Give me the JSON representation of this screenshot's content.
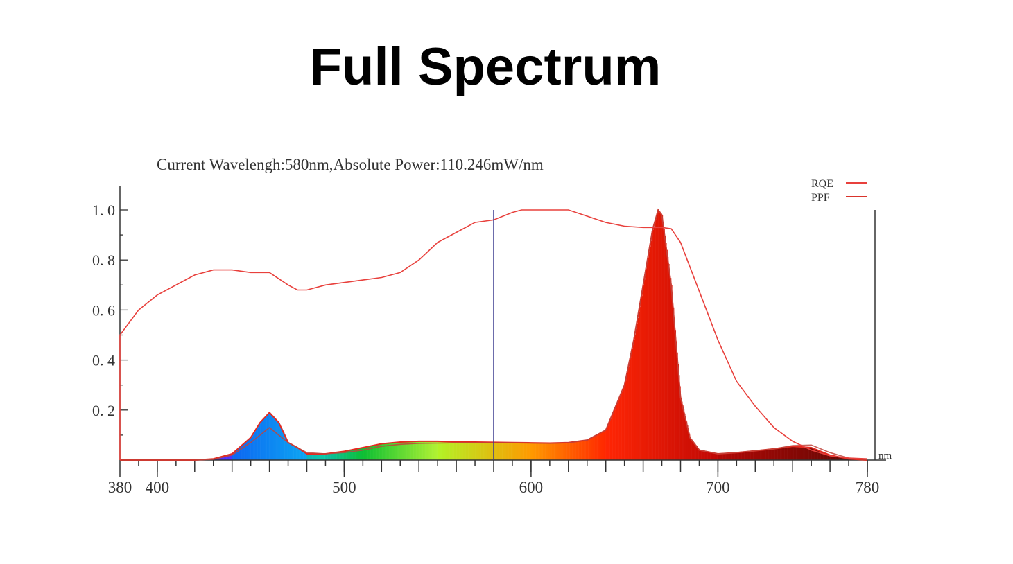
{
  "page_title": "Full Spectrum",
  "chart_data": {
    "type": "area",
    "title": "Current Wavelengh:580nm,Absolute Power:110.246mW/nm",
    "xlabel": "nm",
    "ylabel": "",
    "xlim": [
      380,
      780
    ],
    "ylim": [
      0,
      1.0
    ],
    "x_ticks": [
      380,
      400,
      500,
      600,
      700,
      780
    ],
    "y_ticks": [
      "0.2",
      "0.4",
      "0.6",
      "0.8",
      "1.0"
    ],
    "y_tick_values": [
      0.2,
      0.4,
      0.6,
      0.8,
      1.0
    ],
    "grid": false,
    "legend": {
      "position": "top-right",
      "entries": [
        "RQE",
        "PPF"
      ]
    },
    "marker_wavelength": 580,
    "colors": {
      "RQE": "#e8403c",
      "PPF": "#d9342c",
      "outline": "#e52a20",
      "marker": "#3b3b8f",
      "axis": "#333333"
    },
    "series": [
      {
        "name": "RQE",
        "x": [
          380,
          390,
          400,
          410,
          420,
          430,
          440,
          450,
          460,
          470,
          475,
          480,
          490,
          500,
          510,
          520,
          530,
          540,
          550,
          560,
          570,
          580,
          590,
          595,
          620,
          630,
          640,
          650,
          660,
          670,
          675,
          680,
          690,
          700,
          710,
          720,
          730,
          740,
          750,
          760,
          770,
          780
        ],
        "y": [
          0.5,
          0.6,
          0.66,
          0.7,
          0.74,
          0.76,
          0.76,
          0.75,
          0.75,
          0.7,
          0.68,
          0.68,
          0.7,
          0.71,
          0.72,
          0.73,
          0.75,
          0.8,
          0.87,
          0.91,
          0.95,
          0.96,
          0.99,
          1.0,
          1.0,
          0.975,
          0.95,
          0.935,
          0.93,
          0.93,
          0.925,
          0.87,
          0.675,
          0.48,
          0.315,
          0.215,
          0.13,
          0.075,
          0.04,
          0.017,
          0.008,
          0.005
        ]
      },
      {
        "name": "PPF",
        "x": [
          380,
          420,
          430,
          440,
          450,
          460,
          470,
          480,
          490,
          500,
          510,
          520,
          530,
          540,
          550,
          560,
          570,
          580,
          590,
          600,
          610,
          620,
          630,
          640,
          650,
          655,
          660,
          665,
          668,
          670,
          675,
          680,
          685,
          690,
          700,
          710,
          720,
          730,
          740,
          750,
          760,
          770,
          780
        ],
        "y": [
          0,
          0,
          0.003,
          0.02,
          0.07,
          0.13,
          0.07,
          0.03,
          0.025,
          0.03,
          0.04,
          0.055,
          0.063,
          0.067,
          0.068,
          0.069,
          0.069,
          0.069,
          0.069,
          0.068,
          0.067,
          0.069,
          0.08,
          0.12,
          0.3,
          0.48,
          0.7,
          0.92,
          1.0,
          0.98,
          0.7,
          0.25,
          0.09,
          0.04,
          0.025,
          0.03,
          0.037,
          0.045,
          0.058,
          0.06,
          0.03,
          0.008,
          0.002
        ]
      }
    ],
    "spectrum": {
      "x": [
        380,
        420,
        430,
        440,
        450,
        455,
        460,
        465,
        470,
        475,
        480,
        490,
        500,
        510,
        520,
        530,
        540,
        550,
        560,
        570,
        580,
        590,
        600,
        610,
        620,
        630,
        640,
        650,
        655,
        660,
        665,
        668,
        670,
        675,
        680,
        685,
        690,
        700,
        710,
        720,
        730,
        740,
        750,
        760,
        770,
        780
      ],
      "y": [
        0,
        0,
        0.005,
        0.025,
        0.09,
        0.15,
        0.19,
        0.15,
        0.07,
        0.05,
        0.025,
        0.025,
        0.035,
        0.05,
        0.065,
        0.072,
        0.075,
        0.075,
        0.073,
        0.072,
        0.071,
        0.07,
        0.069,
        0.068,
        0.07,
        0.08,
        0.12,
        0.3,
        0.48,
        0.7,
        0.92,
        1.0,
        0.98,
        0.7,
        0.25,
        0.09,
        0.04,
        0.025,
        0.03,
        0.037,
        0.045,
        0.055,
        0.05,
        0.02,
        0.005,
        0
      ]
    }
  }
}
